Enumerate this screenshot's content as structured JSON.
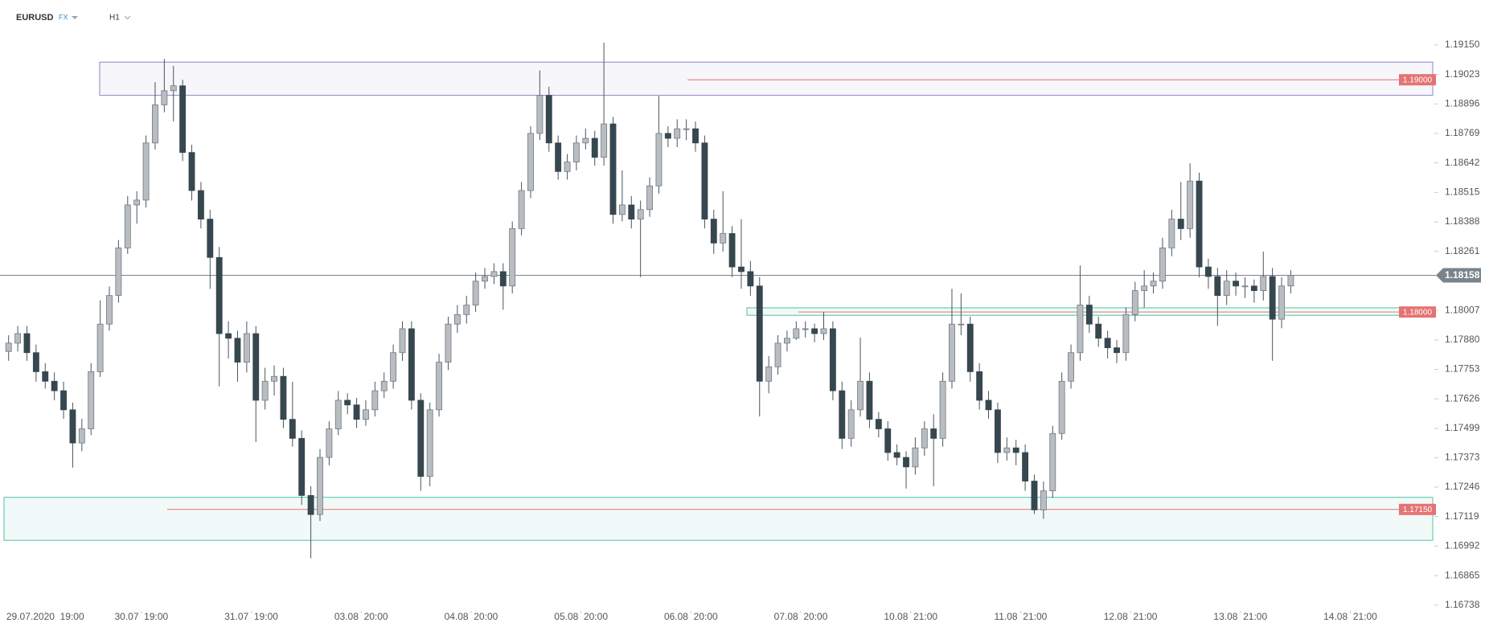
{
  "header": {
    "symbol": "EURUSD",
    "market": "FX",
    "timeframe": "H1"
  },
  "chart_data": {
    "type": "candlestick",
    "up_color": "#b9bdc1",
    "down_color": "#37474f",
    "wick_color": "#4a555c",
    "ylim": [
      1.1672,
      1.1925
    ],
    "yticks": [
      1.16738,
      1.16865,
      1.16992,
      1.17119,
      1.17246,
      1.17373,
      1.17499,
      1.17626,
      1.17753,
      {
        "value": 1.1788,
        "label": "1.17880"
      },
      1.18007,
      1.18261,
      1.18388,
      1.18515,
      1.18642,
      1.18769,
      1.18896,
      1.19023,
      {
        "value": 1.1915,
        "label": "1.19150"
      }
    ],
    "xlim": [
      -0.5,
      155.5
    ],
    "xticks": [
      {
        "value": 4,
        "label": "29.07.2020  19:00"
      },
      {
        "value": 14.5,
        "label": "30.07  19:00"
      },
      {
        "value": 26.5,
        "label": "31.07  19:00"
      },
      {
        "value": 38.5,
        "label": "03.08  20:00"
      },
      {
        "value": 50.5,
        "label": "04.08  20:00"
      },
      {
        "value": 62.5,
        "label": "05.08  20:00"
      },
      {
        "value": 74.5,
        "label": "06.08  20:00"
      },
      {
        "value": 86.5,
        "label": "07.08  20:00"
      },
      {
        "value": 98.5,
        "label": "10.08  21:00"
      },
      {
        "value": 110.5,
        "label": "11.08  21:00"
      },
      {
        "value": 122.5,
        "label": "12.08  21:00"
      },
      {
        "value": 134.5,
        "label": "13.08  21:00"
      },
      {
        "value": 146.5,
        "label": "14.08  21:00"
      }
    ],
    "current_price": 1.18158,
    "current_color": "#79848c",
    "level_color": "#e57373",
    "levels": [
      {
        "value": 1.19,
        "label": "1.19000"
      },
      {
        "value": 1.18,
        "label": "1.18000"
      },
      {
        "value": 1.1715,
        "label": "1.17150"
      }
    ],
    "zones": [
      {
        "from": 1.18933,
        "to": 1.19076,
        "color": "#8e86c8"
      },
      {
        "from": 1.17017,
        "to": 1.17202,
        "color": "#4fc3a1"
      },
      {
        "from": 1.17986,
        "to": 1.18018,
        "color": "#4fc3a1"
      }
    ],
    "candles": [
      [
        1.1783,
        1.179,
        1.1779,
        1.17866
      ],
      [
        1.17866,
        1.1794,
        1.1783,
        1.17907
      ],
      [
        1.17907,
        1.1794,
        1.1779,
        1.17825
      ],
      [
        1.17825,
        1.1786,
        1.177,
        1.17743
      ],
      [
        1.17743,
        1.1778,
        1.1767,
        1.17702
      ],
      [
        1.17702,
        1.1774,
        1.1762,
        1.17661
      ],
      [
        1.17661,
        1.177,
        1.1754,
        1.17579
      ],
      [
        1.17579,
        1.1761,
        1.1733,
        1.17436
      ],
      [
        1.17436,
        1.1754,
        1.174,
        1.17497
      ],
      [
        1.17497,
        1.1778,
        1.1747,
        1.17743
      ],
      [
        1.17743,
        1.1805,
        1.1772,
        1.17948
      ],
      [
        1.17948,
        1.1811,
        1.1792,
        1.18071
      ],
      [
        1.18071,
        1.1831,
        1.1804,
        1.18276
      ],
      [
        1.18276,
        1.185,
        1.1825,
        1.18461
      ],
      [
        1.18461,
        1.1852,
        1.1838,
        1.18482
      ],
      [
        1.18482,
        1.1876,
        1.1845,
        1.18728
      ],
      [
        1.18728,
        1.1899,
        1.187,
        1.18892
      ],
      [
        1.18892,
        1.1909,
        1.1886,
        1.18953
      ],
      [
        1.18953,
        1.1906,
        1.1882,
        1.18974
      ],
      [
        1.18974,
        1.19,
        1.1865,
        1.18687
      ],
      [
        1.18687,
        1.1872,
        1.1848,
        1.18523
      ],
      [
        1.18523,
        1.1856,
        1.1836,
        1.184
      ],
      [
        1.184,
        1.1844,
        1.181,
        1.18235
      ],
      [
        1.18235,
        1.1828,
        1.1768,
        1.17907
      ],
      [
        1.17907,
        1.1796,
        1.178,
        1.17887
      ],
      [
        1.17887,
        1.1792,
        1.177,
        1.17784
      ],
      [
        1.17784,
        1.1796,
        1.1774,
        1.17907
      ],
      [
        1.17907,
        1.1794,
        1.1744,
        1.1762
      ],
      [
        1.1762,
        1.1776,
        1.1758,
        1.17702
      ],
      [
        1.17702,
        1.1777,
        1.1764,
        1.17723
      ],
      [
        1.17723,
        1.1776,
        1.175,
        1.17538
      ],
      [
        1.17538,
        1.177,
        1.1742,
        1.17456
      ],
      [
        1.17456,
        1.1749,
        1.1717,
        1.1721
      ],
      [
        1.1721,
        1.1725,
        1.1694,
        1.17128
      ],
      [
        1.17128,
        1.1741,
        1.171,
        1.17374
      ],
      [
        1.17374,
        1.1753,
        1.1734,
        1.17497
      ],
      [
        1.17497,
        1.1766,
        1.1747,
        1.1762
      ],
      [
        1.1762,
        1.1765,
        1.1756,
        1.176
      ],
      [
        1.176,
        1.1763,
        1.175,
        1.17538
      ],
      [
        1.17538,
        1.1762,
        1.1751,
        1.17579
      ],
      [
        1.17579,
        1.177,
        1.1755,
        1.17661
      ],
      [
        1.17661,
        1.1774,
        1.1763,
        1.17702
      ],
      [
        1.17702,
        1.1786,
        1.1767,
        1.17825
      ],
      [
        1.17825,
        1.1796,
        1.1779,
        1.17928
      ],
      [
        1.17928,
        1.1796,
        1.1758,
        1.1762
      ],
      [
        1.1762,
        1.1765,
        1.1723,
        1.17292
      ],
      [
        1.17292,
        1.1761,
        1.1725,
        1.17579
      ],
      [
        1.17579,
        1.1782,
        1.1755,
        1.17784
      ],
      [
        1.17784,
        1.1798,
        1.1775,
        1.17948
      ],
      [
        1.17948,
        1.1803,
        1.1791,
        1.17989
      ],
      [
        1.17989,
        1.1807,
        1.1795,
        1.1803
      ],
      [
        1.1803,
        1.1817,
        1.18,
        1.18133
      ],
      [
        1.18133,
        1.1819,
        1.181,
        1.18153
      ],
      [
        1.18153,
        1.1821,
        1.1812,
        1.18174
      ],
      [
        1.18174,
        1.1821,
        1.1801,
        1.18112
      ],
      [
        1.18112,
        1.1839,
        1.1808,
        1.18359
      ],
      [
        1.18359,
        1.1856,
        1.1833,
        1.18523
      ],
      [
        1.18523,
        1.188,
        1.1849,
        1.18769
      ],
      [
        1.18769,
        1.1904,
        1.1874,
        1.18933
      ],
      [
        1.18933,
        1.1897,
        1.1869,
        1.18728
      ],
      [
        1.18728,
        1.1876,
        1.1857,
        1.18605
      ],
      [
        1.18605,
        1.1868,
        1.1857,
        1.18646
      ],
      [
        1.18646,
        1.1876,
        1.1861,
        1.18728
      ],
      [
        1.18728,
        1.1879,
        1.187,
        1.18748
      ],
      [
        1.18748,
        1.1878,
        1.1863,
        1.18666
      ],
      [
        1.18666,
        1.1916,
        1.1863,
        1.1881
      ],
      [
        1.1881,
        1.1884,
        1.1838,
        1.1842
      ],
      [
        1.1842,
        1.1861,
        1.1839,
        1.18461
      ],
      [
        1.18461,
        1.185,
        1.1836,
        1.184
      ],
      [
        1.184,
        1.1848,
        1.1815,
        1.18441
      ],
      [
        1.18441,
        1.1858,
        1.1841,
        1.18543
      ],
      [
        1.18543,
        1.1893,
        1.1851,
        1.18769
      ],
      [
        1.18769,
        1.188,
        1.1871,
        1.18748
      ],
      [
        1.18748,
        1.1883,
        1.1871,
        1.18789
      ],
      [
        1.18789,
        1.1883,
        1.1874,
        1.18789
      ],
      [
        1.18789,
        1.1882,
        1.1869,
        1.18728
      ],
      [
        1.18728,
        1.1876,
        1.1836,
        1.184
      ],
      [
        1.184,
        1.1844,
        1.1825,
        1.18297
      ],
      [
        1.18297,
        1.1852,
        1.1826,
        1.18338
      ],
      [
        1.18338,
        1.1837,
        1.1815,
        1.18194
      ],
      [
        1.18194,
        1.184,
        1.181,
        1.18174
      ],
      [
        1.18174,
        1.1822,
        1.1807,
        1.18112
      ],
      [
        1.18112,
        1.1815,
        1.1755,
        1.17702
      ],
      [
        1.17702,
        1.1781,
        1.1765,
        1.17764
      ],
      [
        1.17764,
        1.179,
        1.1773,
        1.17866
      ],
      [
        1.17866,
        1.1792,
        1.1783,
        1.17887
      ],
      [
        1.17887,
        1.1796,
        1.1788,
        1.17928
      ],
      [
        1.17928,
        1.1796,
        1.1789,
        1.17928
      ],
      [
        1.17928,
        1.1795,
        1.1787,
        1.17907
      ],
      [
        1.17907,
        1.18,
        1.1788,
        1.17928
      ],
      [
        1.17928,
        1.1796,
        1.1762,
        1.17661
      ],
      [
        1.17661,
        1.177,
        1.1741,
        1.17456
      ],
      [
        1.17456,
        1.1762,
        1.1742,
        1.17579
      ],
      [
        1.17579,
        1.1789,
        1.1755,
        1.17702
      ],
      [
        1.17702,
        1.1774,
        1.175,
        1.17538
      ],
      [
        1.17538,
        1.1757,
        1.1746,
        1.17497
      ],
      [
        1.17497,
        1.1753,
        1.1736,
        1.17395
      ],
      [
        1.17395,
        1.1743,
        1.1734,
        1.17374
      ],
      [
        1.17374,
        1.174,
        1.1724,
        1.17333
      ],
      [
        1.17333,
        1.1746,
        1.173,
        1.17415
      ],
      [
        1.17415,
        1.1753,
        1.1738,
        1.17497
      ],
      [
        1.17497,
        1.1756,
        1.1725,
        1.17456
      ],
      [
        1.17456,
        1.1774,
        1.1742,
        1.17702
      ],
      [
        1.17702,
        1.181,
        1.1767,
        1.17948
      ],
      [
        1.17948,
        1.1808,
        1.179,
        1.17948
      ],
      [
        1.17948,
        1.1798,
        1.177,
        1.17743
      ],
      [
        1.17743,
        1.1778,
        1.1758,
        1.1762
      ],
      [
        1.1762,
        1.1766,
        1.1754,
        1.17579
      ],
      [
        1.17579,
        1.1761,
        1.1735,
        1.17395
      ],
      [
        1.17395,
        1.1746,
        1.1736,
        1.17415
      ],
      [
        1.17415,
        1.1745,
        1.1734,
        1.17395
      ],
      [
        1.17395,
        1.1743,
        1.1723,
        1.17272
      ],
      [
        1.17272,
        1.173,
        1.1713,
        1.17148
      ],
      [
        1.17148,
        1.1727,
        1.1711,
        1.1723
      ],
      [
        1.1723,
        1.1751,
        1.172,
        1.17477
      ],
      [
        1.17477,
        1.1774,
        1.1745,
        1.17702
      ],
      [
        1.17702,
        1.1786,
        1.1767,
        1.17825
      ],
      [
        1.17825,
        1.182,
        1.1779,
        1.1803
      ],
      [
        1.1803,
        1.1807,
        1.1791,
        1.17948
      ],
      [
        1.17948,
        1.1798,
        1.1785,
        1.17887
      ],
      [
        1.17887,
        1.1792,
        1.178,
        1.17846
      ],
      [
        1.17846,
        1.1788,
        1.1778,
        1.17825
      ],
      [
        1.17825,
        1.1802,
        1.1779,
        1.17989
      ],
      [
        1.17989,
        1.1813,
        1.1796,
        1.18092
      ],
      [
        1.18092,
        1.1818,
        1.1802,
        1.18112
      ],
      [
        1.18112,
        1.1817,
        1.1808,
        1.18133
      ],
      [
        1.18133,
        1.1832,
        1.181,
        1.18276
      ],
      [
        1.18276,
        1.1844,
        1.1824,
        1.184
      ],
      [
        1.184,
        1.1856,
        1.1831,
        1.18359
      ],
      [
        1.18359,
        1.1864,
        1.1832,
        1.18564
      ],
      [
        1.18564,
        1.186,
        1.1815,
        1.18194
      ],
      [
        1.18194,
        1.1823,
        1.181,
        1.18153
      ],
      [
        1.18153,
        1.1819,
        1.1794,
        1.18071
      ],
      [
        1.18071,
        1.1818,
        1.1803,
        1.18133
      ],
      [
        1.18133,
        1.1817,
        1.1807,
        1.18112
      ],
      [
        1.18112,
        1.1815,
        1.1806,
        1.18112
      ],
      [
        1.18112,
        1.1814,
        1.1804,
        1.18092
      ],
      [
        1.18092,
        1.1826,
        1.1805,
        1.18153
      ],
      [
        1.18153,
        1.1819,
        1.1779,
        1.17969
      ],
      [
        1.17969,
        1.1815,
        1.1793,
        1.18112
      ],
      [
        1.18112,
        1.1818,
        1.1808,
        1.18158
      ]
    ]
  }
}
